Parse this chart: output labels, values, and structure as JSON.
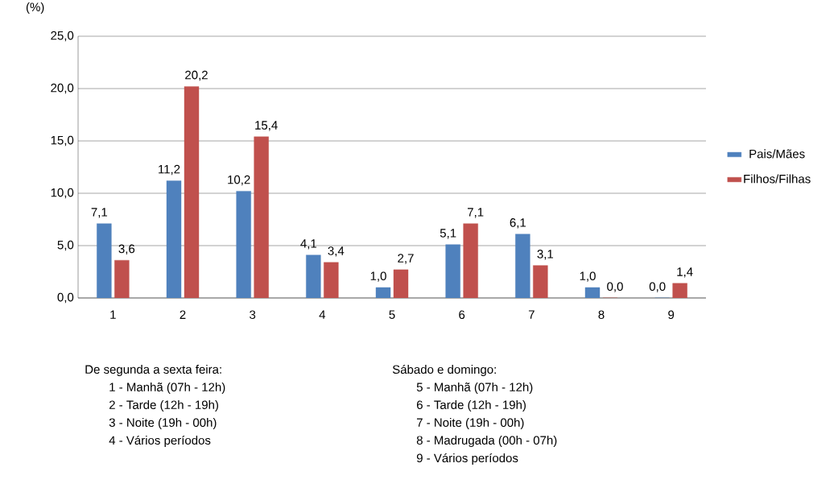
{
  "chart_data": {
    "type": "bar",
    "ylabel": "(%)",
    "categories": [
      "1",
      "2",
      "3",
      "4",
      "5",
      "6",
      "7",
      "8",
      "9"
    ],
    "series": [
      {
        "name": "Pais/Mães",
        "color": "#4f81bd",
        "values": [
          7.1,
          11.2,
          10.2,
          4.1,
          1.0,
          5.1,
          6.1,
          1.0,
          0.0
        ],
        "value_labels": [
          "7,1",
          "11,2",
          "10,2",
          "4,1",
          "1,0",
          "5,1",
          "6,1",
          "1,0",
          "0,0"
        ]
      },
      {
        "name": "Filhos/Filhas",
        "color": "#c0504d",
        "values": [
          3.6,
          20.2,
          15.4,
          3.4,
          2.7,
          7.1,
          3.1,
          0.0,
          1.4
        ],
        "value_labels": [
          "3,6",
          "20,2",
          "15,4",
          "3,4",
          "2,7",
          "7,1",
          "3,1",
          "0,0",
          "1,4"
        ]
      }
    ],
    "ylim": [
      0,
      25
    ],
    "yticks": [
      {
        "value": 0,
        "label": "0,0"
      },
      {
        "value": 5,
        "label": "5,0"
      },
      {
        "value": 10,
        "label": "10,0"
      },
      {
        "value": 15,
        "label": "15,0"
      },
      {
        "value": 20,
        "label": "20,0"
      },
      {
        "value": 25,
        "label": "25,0"
      }
    ],
    "grid": "y",
    "legend": "right",
    "annotations": [
      "De segunda a sexta feira:",
      "1 - Manhã (07h - 12h)",
      "2 - Tarde (12h - 19h)",
      "3 - Noite (19h - 00h)",
      "4 - Vários períodos",
      "Sábado e domingo:",
      "5 - Manhã (07h - 12h)",
      "6 - Tarde (12h - 19h)",
      "7 - Noite (19h - 00h)",
      "8 - Madrugada (00h - 07h)",
      "9 - Vários períodos"
    ]
  }
}
